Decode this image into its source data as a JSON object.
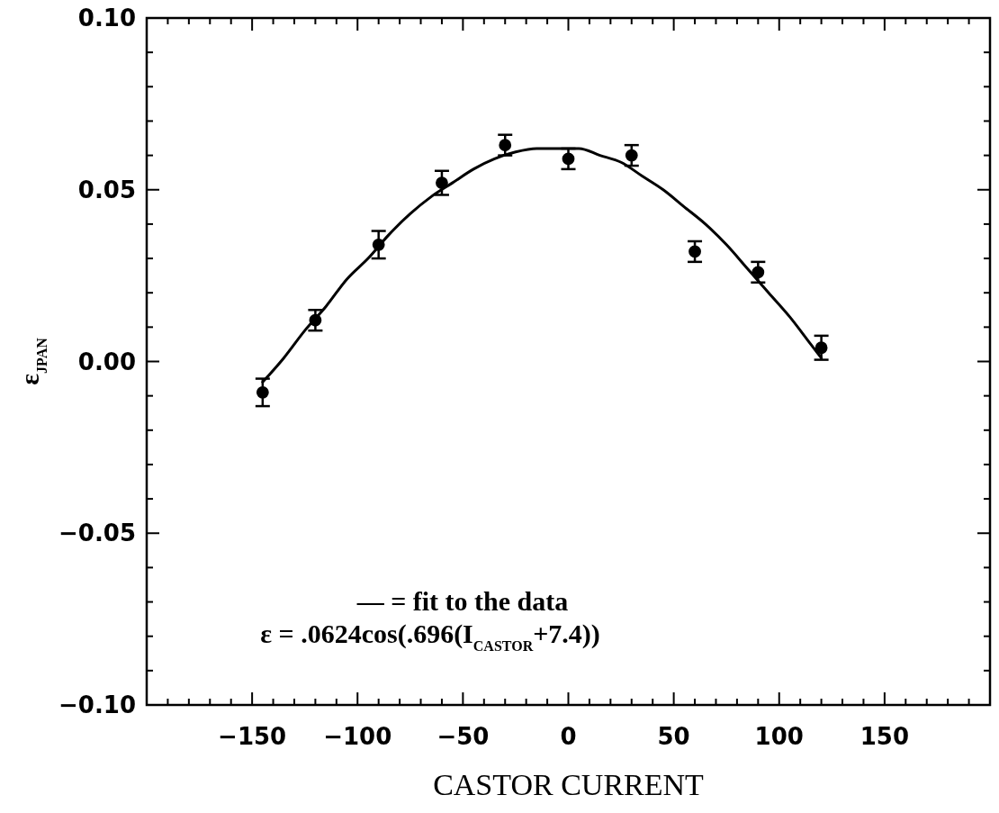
{
  "chart_data": {
    "type": "scatter",
    "xlabel": "CASTOR CURRENT",
    "ylabel": "ε$_{JPAN}$",
    "annotations": [
      "— = fit to the data",
      "ε = .0624cos(.696(I$_{CASTOR}$+7.4))"
    ],
    "xlim": [
      -200,
      200
    ],
    "xticks": [
      {
        "value": -200,
        "label": null
      },
      {
        "value": -190,
        "label": null
      },
      {
        "value": -180,
        "label": null
      },
      {
        "value": -170,
        "label": null
      },
      {
        "value": -160,
        "label": null
      },
      {
        "value": -150,
        "label": "−150"
      },
      {
        "value": -140,
        "label": null
      },
      {
        "value": -130,
        "label": null
      },
      {
        "value": -120,
        "label": null
      },
      {
        "value": -110,
        "label": null
      },
      {
        "value": -100,
        "label": "−100"
      },
      {
        "value": -90,
        "label": null
      },
      {
        "value": -80,
        "label": null
      },
      {
        "value": -70,
        "label": null
      },
      {
        "value": -60,
        "label": null
      },
      {
        "value": -50,
        "label": "−50"
      },
      {
        "value": -40,
        "label": null
      },
      {
        "value": -30,
        "label": null
      },
      {
        "value": -20,
        "label": null
      },
      {
        "value": -10,
        "label": null
      },
      0,
      {
        "value": 10,
        "label": null
      },
      {
        "value": 20,
        "label": null
      },
      {
        "value": 30,
        "label": null
      },
      {
        "value": 40,
        "label": null
      },
      50,
      {
        "value": 60,
        "label": null
      },
      {
        "value": 70,
        "label": null
      },
      {
        "value": 80,
        "label": null
      },
      {
        "value": 90,
        "label": null
      },
      100,
      {
        "value": 110,
        "label": null
      },
      {
        "value": 120,
        "label": null
      },
      {
        "value": 130,
        "label": null
      },
      {
        "value": 140,
        "label": null
      },
      150,
      {
        "value": 160,
        "label": null
      },
      {
        "value": 170,
        "label": null
      },
      {
        "value": 180,
        "label": null
      },
      {
        "value": 190,
        "label": null
      },
      {
        "value": 200,
        "label": null
      }
    ],
    "ylim": [
      -0.1,
      0.1
    ],
    "yticks": [
      {
        "value": -0.1,
        "label": "−0.10"
      },
      {
        "value": -0.09,
        "label": null
      },
      {
        "value": -0.08,
        "label": null
      },
      {
        "value": -0.07,
        "label": null
      },
      {
        "value": -0.06,
        "label": null
      },
      {
        "value": -0.05,
        "label": "−0.05"
      },
      {
        "value": -0.04,
        "label": null
      },
      {
        "value": -0.03,
        "label": null
      },
      {
        "value": -0.02,
        "label": null
      },
      {
        "value": -0.01,
        "label": null
      },
      {
        "value": 0,
        "label": "0.00"
      },
      {
        "value": 0.01,
        "label": null
      },
      {
        "value": 0.02,
        "label": null
      },
      {
        "value": 0.03,
        "label": null
      },
      {
        "value": 0.04,
        "label": null
      },
      {
        "value": 0.05,
        "label": "0.05"
      },
      {
        "value": 0.06,
        "label": null
      },
      {
        "value": 0.07,
        "label": null
      },
      {
        "value": 0.08,
        "label": null
      },
      {
        "value": 0.09,
        "label": null
      },
      {
        "value": 0.1,
        "label": "0.10"
      }
    ],
    "marker": "circle",
    "series": [
      {
        "type": "line",
        "color": "#000000",
        "marker": "none",
        "x": [
          -145,
          -135,
          -125,
          -115,
          -105,
          -95,
          -85,
          -75,
          -65,
          -55,
          -45,
          -35,
          -25,
          -15,
          -5,
          5,
          15,
          25,
          35,
          45,
          55,
          65,
          75,
          85,
          95,
          105,
          115,
          120
        ],
        "values": [
          -0.006,
          0.001,
          0.009,
          0.016,
          0.024,
          0.03,
          0.037,
          0.043,
          0.048,
          0.052,
          0.056,
          0.059,
          0.061,
          0.062,
          0.062,
          0.062,
          0.06,
          0.058,
          0.054,
          0.05,
          0.045,
          0.04,
          0.034,
          0.027,
          0.02,
          0.013,
          0.005,
          0.001
        ]
      },
      {
        "color": "#000000",
        "x": [
          -145,
          -120,
          -90,
          -60,
          -30,
          0,
          30,
          60,
          90,
          120
        ],
        "values": [
          -0.009,
          0.012,
          0.034,
          0.052,
          0.063,
          0.059,
          0.06,
          0.032,
          0.026,
          0.004
        ],
        "errors": [
          0.004,
          0.003,
          0.004,
          0.0035,
          0.003,
          0.003,
          0.003,
          0.003,
          0.003,
          0.0035
        ]
      }
    ]
  }
}
